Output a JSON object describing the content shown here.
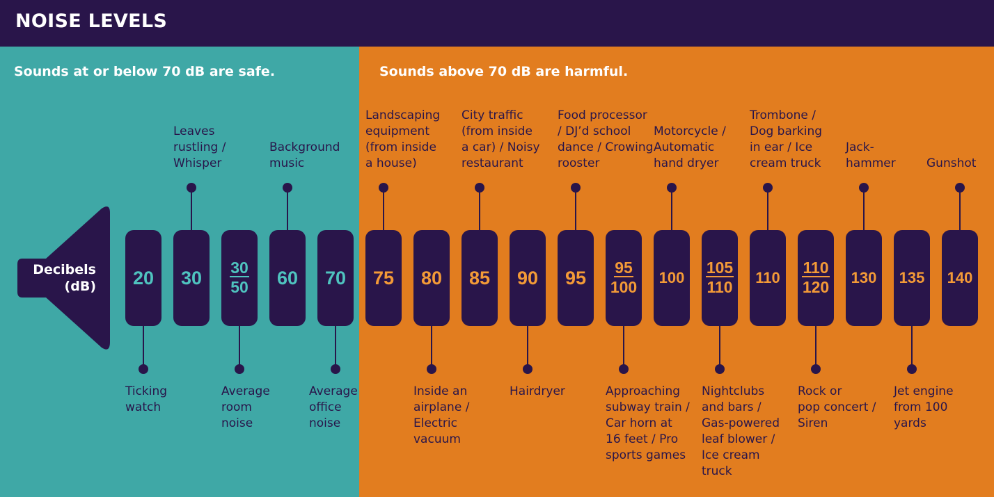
{
  "title": "NOISE LEVELS",
  "safe_caption": "Sounds at or below 70 dB are safe.",
  "harm_caption": "Sounds above 70 dB are harmful.",
  "speaker_label": [
    "Decibels",
    "(dB)"
  ],
  "colors": {
    "header": "#29154a",
    "safe": "#3fa8a6",
    "harmful": "#e27d1f",
    "pill": "#29154a",
    "text": "#29154a",
    "safe_value": "#4fc3bf",
    "harm_value": "#f39a37"
  },
  "levels": [
    {
      "value": "20",
      "zone": "safe",
      "side": "bottom",
      "label": [
        "Ticking",
        "watch"
      ]
    },
    {
      "value": "30",
      "zone": "safe",
      "side": "top",
      "label": [
        "Leaves",
        "rustling /",
        "Whisper"
      ]
    },
    {
      "value": [
        "30",
        "50"
      ],
      "zone": "safe",
      "side": "bottom",
      "label": [
        "Average",
        "room",
        "noise"
      ]
    },
    {
      "value": "60",
      "zone": "safe",
      "side": "top",
      "label": [
        "Background",
        "music"
      ]
    },
    {
      "value": "70",
      "zone": "safe",
      "side": "bottom",
      "label": [
        "Average",
        "office",
        "noise"
      ]
    },
    {
      "value": "75",
      "zone": "harmful",
      "side": "top",
      "label": [
        "Landscaping",
        "equipment",
        "(from inside",
        "a house)"
      ]
    },
    {
      "value": "80",
      "zone": "harmful",
      "side": "bottom",
      "label": [
        "Inside an",
        "airplane /",
        "Electric",
        "vacuum"
      ]
    },
    {
      "value": "85",
      "zone": "harmful",
      "side": "top",
      "label": [
        "City traffic",
        "(from inside",
        "a car) / Noisy",
        "restaurant"
      ]
    },
    {
      "value": "90",
      "zone": "harmful",
      "side": "bottom",
      "label": [
        "Hairdryer"
      ]
    },
    {
      "value": "95",
      "zone": "harmful",
      "side": "top",
      "label": [
        "Food processor",
        "/ DJ’d school",
        "dance / Crowing",
        "rooster"
      ]
    },
    {
      "value": [
        "95",
        "100"
      ],
      "zone": "harmful",
      "side": "bottom",
      "label": [
        "Approaching",
        "subway train /",
        "Car horn at",
        "16 feet / Pro",
        "sports games"
      ]
    },
    {
      "value": "100",
      "zone": "harmful",
      "side": "top",
      "label": [
        "Motorcycle /",
        "Automatic",
        "hand dryer"
      ]
    },
    {
      "value": [
        "105",
        "110"
      ],
      "zone": "harmful",
      "side": "bottom",
      "label": [
        "Nightclubs",
        "and bars /",
        "Gas-powered",
        "leaf blower /",
        "Ice cream",
        "truck"
      ]
    },
    {
      "value": "110",
      "zone": "harmful",
      "side": "top",
      "label": [
        "Trombone /",
        "Dog barking",
        "in ear / Ice",
        "cream truck"
      ]
    },
    {
      "value": [
        "110",
        "120"
      ],
      "zone": "harmful",
      "side": "bottom",
      "label": [
        "Rock or",
        "pop concert /",
        "Siren"
      ]
    },
    {
      "value": "130",
      "zone": "harmful",
      "side": "top",
      "label": [
        "Jack-",
        "hammer"
      ]
    },
    {
      "value": "135",
      "zone": "harmful",
      "side": "bottom",
      "label": [
        "Jet engine",
        "from 100",
        "yards"
      ]
    },
    {
      "value": "140",
      "zone": "harmful",
      "side": "top",
      "label": [
        "Gunshot"
      ]
    }
  ]
}
